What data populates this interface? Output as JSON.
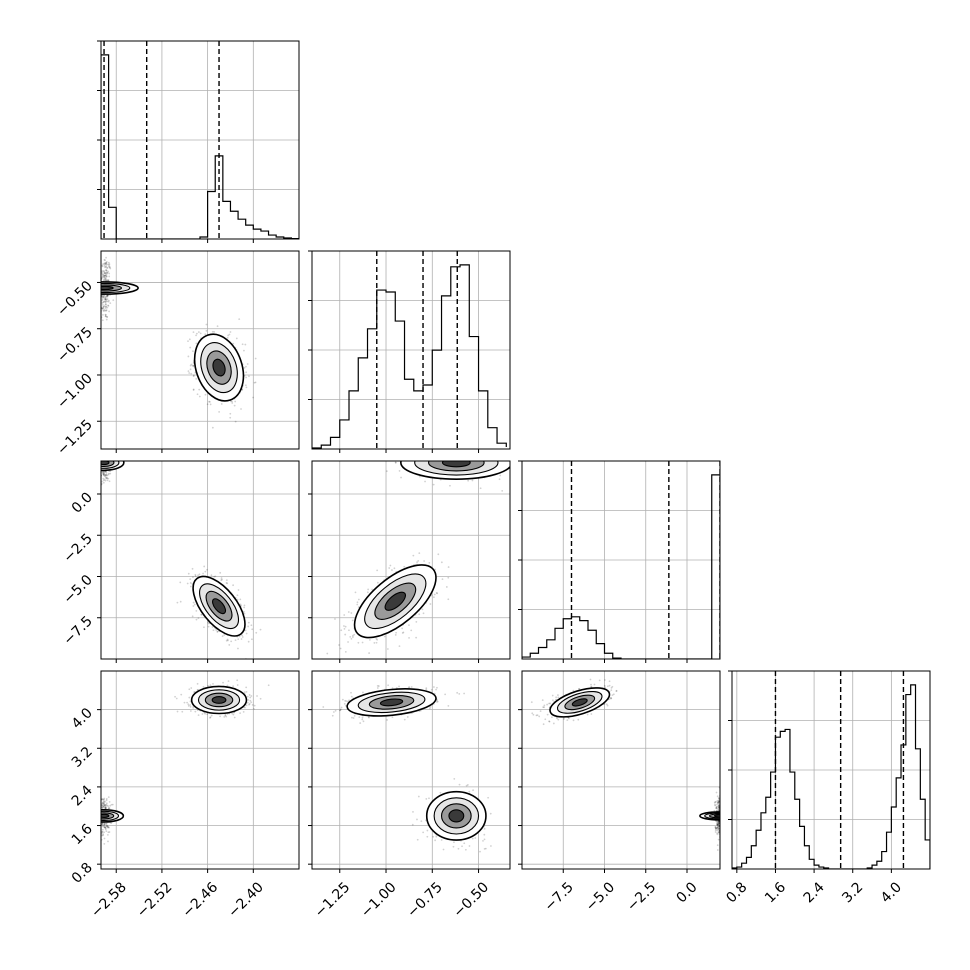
{
  "chart_data": {
    "type": "corner",
    "title": "",
    "grid": true,
    "parameters": [
      {
        "xlim": [
          -2.6,
          -2.34
        ],
        "quantiles": [
          -2.596,
          -2.54,
          -2.445
        ],
        "ticks": [
          -2.58,
          -2.52,
          -2.46,
          -2.4
        ],
        "tick_labels": [
          "−2.58",
          "−2.52",
          "−2.46",
          "−2.40"
        ]
      },
      {
        "xlim": [
          -1.4,
          -0.33
        ],
        "quantiles": [
          -1.05,
          -0.8,
          -0.615
        ],
        "ticks": [
          -1.25,
          -1.0,
          -0.75,
          -0.5
        ],
        "tick_labels": [
          "−1.25",
          "−1.00",
          "−0.75",
          "−0.50"
        ]
      },
      {
        "xlim": [
          -10.0,
          2.0
        ],
        "quantiles": [
          -7.0,
          -1.1,
          2.0
        ],
        "ticks": [
          -7.5,
          -5.0,
          -2.5,
          0.0
        ],
        "tick_labels": [
          "−7.5",
          "−5.0",
          "−2.5",
          "0.0"
        ]
      },
      {
        "xlim": [
          0.7,
          4.8
        ],
        "quantiles": [
          1.6,
          2.95,
          4.25
        ],
        "ticks": [
          0.8,
          1.6,
          2.4,
          3.2,
          4.0
        ],
        "tick_labels": [
          "0.8",
          "1.6",
          "2.4",
          "3.2",
          "4.0"
        ]
      }
    ],
    "histograms": [
      {
        "param": 0,
        "bins": [
          -2.6,
          -2.59,
          -2.58,
          -2.57,
          -2.56,
          -2.55,
          -2.54,
          -2.53,
          -2.52,
          -2.51,
          -2.5,
          -2.49,
          -2.48,
          -2.47,
          -2.46,
          -2.45,
          -2.44,
          -2.43,
          -2.42,
          -2.41,
          -2.4,
          -2.39,
          -2.38,
          -2.37,
          -2.36,
          -2.35,
          -2.34
        ],
        "counts": [
          0.93,
          0.16,
          0,
          0,
          0,
          0,
          0,
          0,
          0,
          0,
          0,
          0,
          0,
          0.01,
          0.24,
          0.42,
          0.19,
          0.14,
          0.1,
          0.07,
          0.05,
          0.04,
          0.02,
          0.01,
          0.005,
          0.002
        ]
      },
      {
        "param": 1,
        "bins": [
          -1.4,
          -1.35,
          -1.3,
          -1.25,
          -1.2,
          -1.15,
          -1.1,
          -1.05,
          -1.0,
          -0.95,
          -0.9,
          -0.85,
          -0.8,
          -0.75,
          -0.7,
          -0.65,
          -0.6,
          -0.55,
          -0.5,
          -0.45,
          -0.4,
          -0.35
        ],
        "counts": [
          0.005,
          0.02,
          0.06,
          0.15,
          0.3,
          0.47,
          0.62,
          0.82,
          0.81,
          0.66,
          0.36,
          0.3,
          0.33,
          0.51,
          0.79,
          0.94,
          0.95,
          0.58,
          0.3,
          0.11,
          0.03,
          0.01
        ]
      },
      {
        "param": 2,
        "bins": [
          -10,
          -9.5,
          -9,
          -8.5,
          -8,
          -7.5,
          -7,
          -6.5,
          -6,
          -5.5,
          -5,
          -4.5,
          -4,
          -3.5,
          -3,
          -2.5,
          -2,
          -1.5,
          -1,
          -0.5,
          0,
          0.5,
          1,
          1.5,
          2
        ],
        "counts": [
          0.01,
          0.03,
          0.06,
          0.1,
          0.16,
          0.21,
          0.22,
          0.2,
          0.15,
          0.08,
          0.03,
          0.005,
          0,
          0,
          0,
          0,
          0,
          0,
          0,
          0,
          0,
          0,
          0,
          0.96
        ]
      },
      {
        "param": 3,
        "bins": [
          0.7,
          0.8,
          0.9,
          1.0,
          1.1,
          1.2,
          1.3,
          1.4,
          1.5,
          1.6,
          1.7,
          1.8,
          1.9,
          2.0,
          2.1,
          2.2,
          2.3,
          2.4,
          2.5,
          2.6,
          2.7,
          2.8,
          2.9,
          3.0,
          3.1,
          3.2,
          3.3,
          3.4,
          3.5,
          3.6,
          3.7,
          3.8,
          3.9,
          4.0,
          4.1,
          4.2,
          4.3,
          4.4,
          4.5,
          4.6,
          4.7,
          4.8
        ],
        "counts": [
          0.005,
          0.01,
          0.03,
          0.06,
          0.12,
          0.2,
          0.29,
          0.37,
          0.5,
          0.68,
          0.71,
          0.72,
          0.5,
          0.36,
          0.22,
          0.12,
          0.05,
          0.02,
          0.01,
          0.005,
          0,
          0,
          0,
          0,
          0,
          0,
          0,
          0,
          0.005,
          0.02,
          0.04,
          0.09,
          0.19,
          0.32,
          0.47,
          0.64,
          0.9,
          0.95,
          0.62,
          0.36,
          0.15
        ]
      }
    ],
    "clusters": [
      {
        "x": 0,
        "y": 1,
        "modes": [
          {
            "mu": [
              -2.595,
              -0.53
            ],
            "sigma": [
              0.004,
              0.09
            ],
            "rho": 0.0,
            "weight": 0.3
          },
          {
            "mu": [
              -2.445,
              -0.96
            ],
            "sigma": [
              0.016,
              0.09
            ],
            "rho": -0.25,
            "weight": 0.7
          }
        ]
      },
      {
        "x": 0,
        "y": 2,
        "modes": [
          {
            "mu": [
              -2.596,
              1.9
            ],
            "sigma": [
              0.005,
              0.6
            ],
            "rho": 0.0,
            "weight": 0.3
          },
          {
            "mu": [
              -2.445,
              -6.8
            ],
            "sigma": [
              0.017,
              0.9
            ],
            "rho": -0.6,
            "weight": 0.7
          }
        ]
      },
      {
        "x": 0,
        "y": 3,
        "modes": [
          {
            "mu": [
              -2.596,
              1.8
            ],
            "sigma": [
              0.004,
              0.2
            ],
            "rho": 0.0,
            "weight": 0.3
          },
          {
            "mu": [
              -2.445,
              4.2
            ],
            "sigma": [
              0.018,
              0.14
            ],
            "rho": 0.0,
            "weight": 0.7
          }
        ]
      },
      {
        "x": 1,
        "y": 2,
        "modes": [
          {
            "mu": [
              -0.62,
              1.9
            ],
            "sigma": [
              0.15,
              0.5
            ],
            "rho": 0.0,
            "weight": 0.35
          },
          {
            "mu": [
              -0.95,
              -6.5
            ],
            "sigma": [
              0.11,
              1.1
            ],
            "rho": 0.65,
            "weight": 0.65
          }
        ]
      },
      {
        "x": 1,
        "y": 3,
        "modes": [
          {
            "mu": [
              -0.97,
              4.15
            ],
            "sigma": [
              0.12,
              0.14
            ],
            "rho": 0.3,
            "weight": 0.6
          },
          {
            "mu": [
              -0.62,
              1.8
            ],
            "sigma": [
              0.08,
              0.25
            ],
            "rho": 0.0,
            "weight": 0.4
          }
        ]
      },
      {
        "x": 2,
        "y": 3,
        "modes": [
          {
            "mu": [
              -6.5,
              4.15
            ],
            "sigma": [
              0.9,
              0.15
            ],
            "rho": 0.55,
            "weight": 0.65
          },
          {
            "mu": [
              1.95,
              1.8
            ],
            "sigma": [
              0.12,
              0.2
            ],
            "rho": 0.0,
            "weight": 0.35
          }
        ]
      }
    ]
  }
}
